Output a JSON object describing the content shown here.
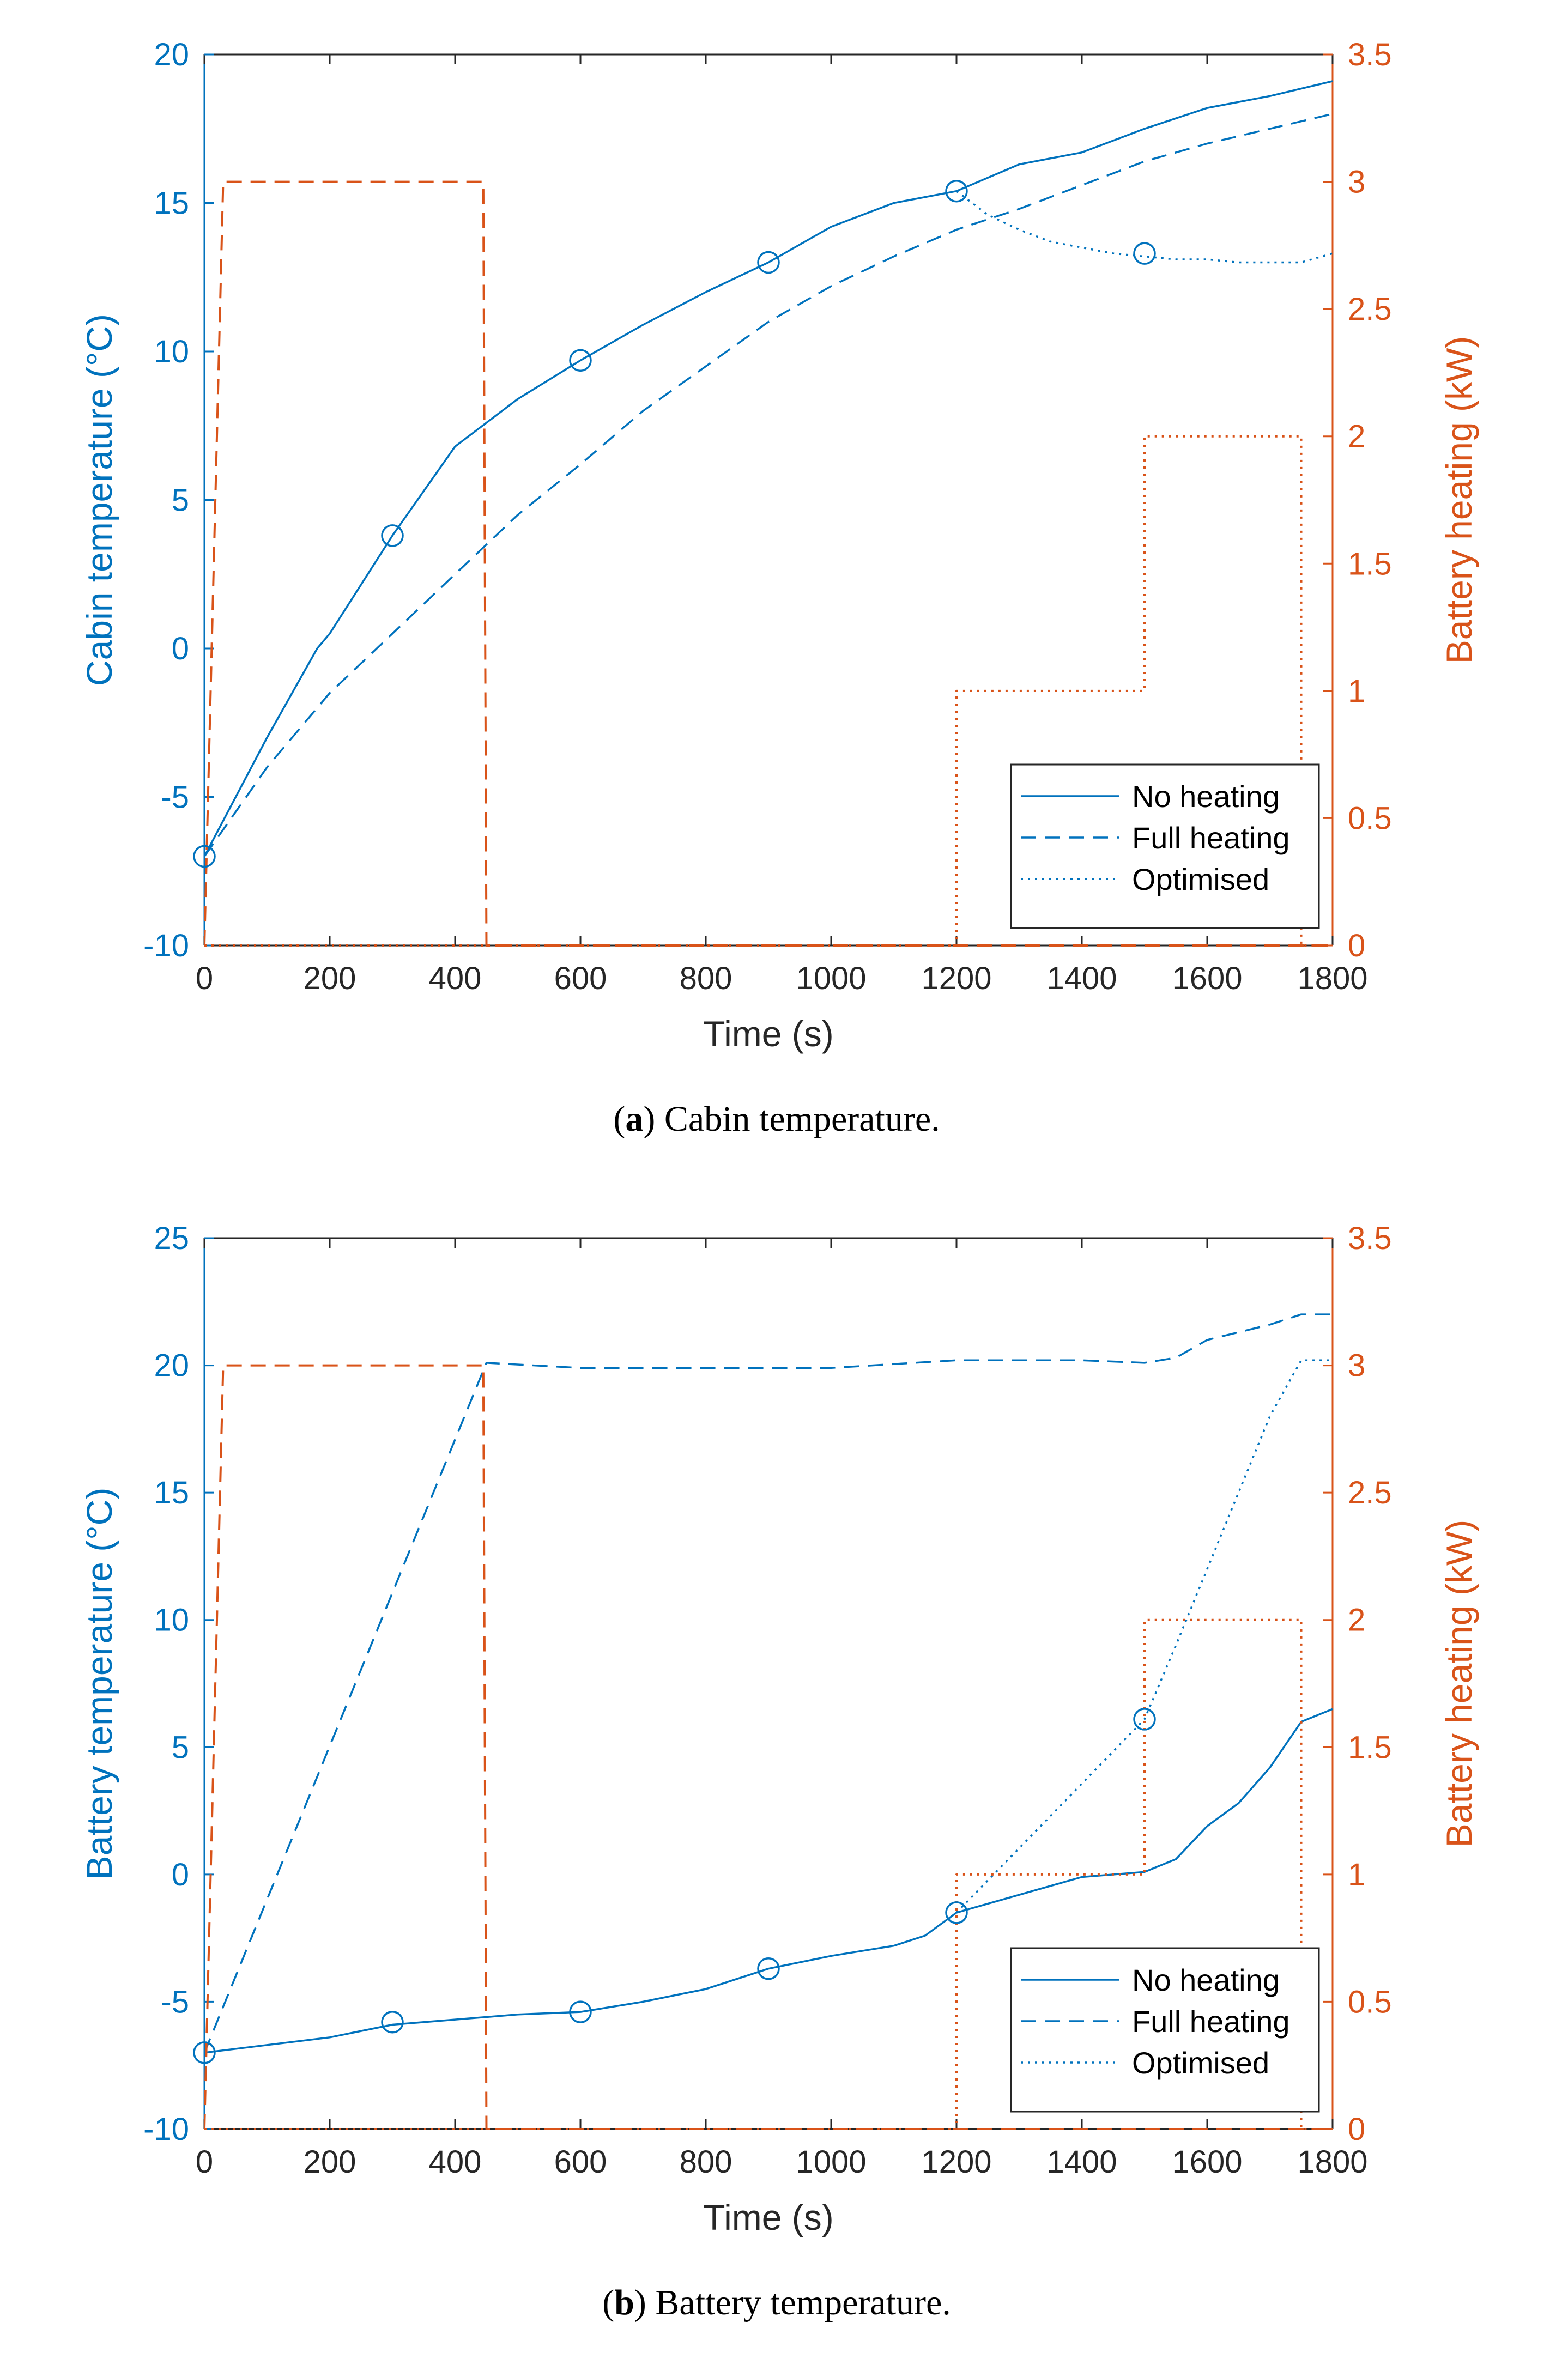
{
  "colors": {
    "left_axis": "#0072BD",
    "right_axis": "#D95319",
    "series_blue": "#0072BD",
    "heat_orange": "#D95319"
  },
  "chart_data": [
    {
      "type": "line",
      "caption_letter": "a",
      "caption_open": "(",
      "caption_close": ")",
      "caption_text": " Cabin temperature.",
      "xlabel": "Time (s)",
      "ylabel_left": "Cabin temperature (°C)",
      "ylabel_right": "Battery heating (kW)",
      "xlim": [
        0,
        1800
      ],
      "ylim_left": [
        -10,
        20
      ],
      "ylim_right": [
        0,
        3.5
      ],
      "xticks": [
        0,
        200,
        400,
        600,
        800,
        1000,
        1200,
        1400,
        1600,
        1800
      ],
      "yticks_left": [
        -10,
        -5,
        0,
        5,
        10,
        15,
        20
      ],
      "yticks_right": [
        0,
        0.5,
        1,
        1.5,
        2,
        2.5,
        3,
        3.5
      ],
      "ytick_labels_right": [
        "0",
        "0.5",
        "1",
        "1.5",
        "2",
        "2.5",
        "3",
        "3.5"
      ],
      "legend": {
        "placement": "bottom-right",
        "entries": [
          "No heating",
          "Full heating",
          "Optimised"
        ]
      },
      "series": [
        {
          "name": "No heating",
          "axis": "left",
          "style": "solid",
          "x": [
            0,
            100,
            180,
            200,
            300,
            400,
            500,
            600,
            700,
            800,
            900,
            1000,
            1100,
            1200,
            1300,
            1400,
            1500,
            1600,
            1700,
            1800
          ],
          "y": [
            -7,
            -3,
            0,
            0.5,
            3.8,
            6.8,
            8.4,
            9.7,
            10.9,
            12,
            13,
            14.2,
            15,
            15.4,
            16.3,
            16.7,
            17.5,
            18.2,
            18.6,
            19.1
          ]
        },
        {
          "name": "Full heating",
          "axis": "left",
          "style": "dashed",
          "x": [
            0,
            100,
            200,
            300,
            400,
            500,
            600,
            700,
            800,
            900,
            1000,
            1100,
            1200,
            1300,
            1400,
            1500,
            1600,
            1700,
            1800
          ],
          "y": [
            -7,
            -4,
            -1.5,
            0.5,
            2.5,
            4.5,
            6.2,
            8,
            9.5,
            11,
            12.2,
            13.2,
            14.1,
            14.8,
            15.6,
            16.4,
            17,
            17.5,
            18
          ]
        },
        {
          "name": "Optimised",
          "axis": "left",
          "style": "dotted",
          "x": [
            1200,
            1250,
            1300,
            1350,
            1400,
            1450,
            1500,
            1550,
            1600,
            1650,
            1700,
            1750,
            1800
          ],
          "y": [
            15.4,
            14.6,
            14.1,
            13.7,
            13.5,
            13.3,
            13.2,
            13.1,
            13.1,
            13.0,
            13.0,
            13.0,
            13.3
          ]
        },
        {
          "name": "Full heating power",
          "axis": "right",
          "style": "dashed-orange",
          "x": [
            0,
            30,
            445,
            450,
            1800
          ],
          "y": [
            0,
            3,
            3,
            0,
            0
          ]
        },
        {
          "name": "Optimised power",
          "axis": "right",
          "style": "dotted-orange",
          "x": [
            0,
            1200,
            1200,
            1500,
            1500,
            1750,
            1750,
            1800
          ],
          "y": [
            0,
            0,
            1,
            1,
            2,
            2,
            0,
            0
          ]
        }
      ],
      "markers": {
        "axis": "left",
        "x": [
          0,
          300,
          600,
          900,
          1200,
          1500
        ],
        "y": [
          -7,
          3.8,
          9.7,
          13,
          15.4,
          13.3
        ]
      }
    },
    {
      "type": "line",
      "caption_letter": "b",
      "caption_open": "(",
      "caption_close": ")",
      "caption_text": " Battery temperature.",
      "xlabel": "Time (s)",
      "ylabel_left": "Battery temperature (°C)",
      "ylabel_right": "Battery heating (kW)",
      "xlim": [
        0,
        1800
      ],
      "ylim_left": [
        -10,
        25
      ],
      "ylim_right": [
        0,
        3.5
      ],
      "xticks": [
        0,
        200,
        400,
        600,
        800,
        1000,
        1200,
        1400,
        1600,
        1800
      ],
      "yticks_left": [
        -10,
        -5,
        0,
        5,
        10,
        15,
        20,
        25
      ],
      "yticks_right": [
        0,
        0.5,
        1,
        1.5,
        2,
        2.5,
        3,
        3.5
      ],
      "ytick_labels_right": [
        "0",
        "0.5",
        "1",
        "1.5",
        "2",
        "2.5",
        "3",
        "3.5"
      ],
      "legend": {
        "placement": "bottom-right",
        "entries": [
          "No heating",
          "Full heating",
          "Optimised"
        ]
      },
      "series": [
        {
          "name": "No heating",
          "axis": "left",
          "style": "solid",
          "x": [
            0,
            100,
            200,
            300,
            400,
            500,
            600,
            700,
            800,
            900,
            1000,
            1100,
            1150,
            1200,
            1300,
            1400,
            1500,
            1550,
            1600,
            1650,
            1700,
            1750,
            1800
          ],
          "y": [
            -7,
            -6.7,
            -6.4,
            -5.9,
            -5.7,
            -5.5,
            -5.4,
            -5,
            -4.5,
            -3.7,
            -3.2,
            -2.8,
            -2.4,
            -1.5,
            -0.8,
            -0.1,
            0.1,
            0.6,
            1.9,
            2.8,
            4.2,
            6.0,
            6.5
          ]
        },
        {
          "name": "Full heating",
          "axis": "left",
          "style": "dashed",
          "x": [
            0,
            450,
            600,
            800,
            1000,
            1200,
            1400,
            1500,
            1550,
            1600,
            1700,
            1750,
            1800
          ],
          "y": [
            -7,
            20.1,
            19.9,
            19.9,
            19.9,
            20.2,
            20.2,
            20.1,
            20.3,
            21.0,
            21.6,
            22.0,
            22.0
          ]
        },
        {
          "name": "Optimised",
          "axis": "left",
          "style": "dotted",
          "x": [
            1200,
            1500,
            1550,
            1600,
            1650,
            1700,
            1750,
            1800
          ],
          "y": [
            -1.5,
            6.1,
            9.0,
            12.0,
            15.0,
            18.0,
            20.2,
            20.2
          ]
        },
        {
          "name": "Full heating power",
          "axis": "right",
          "style": "dashed-orange",
          "x": [
            0,
            30,
            445,
            450,
            1800
          ],
          "y": [
            0,
            3,
            3,
            0,
            0
          ]
        },
        {
          "name": "Optimised power",
          "axis": "right",
          "style": "dotted-orange",
          "x": [
            0,
            1200,
            1200,
            1500,
            1500,
            1750,
            1750,
            1800
          ],
          "y": [
            0,
            0,
            1,
            1,
            2,
            2,
            0,
            0
          ]
        }
      ],
      "markers": {
        "axis": "left",
        "x": [
          0,
          300,
          600,
          900,
          1200,
          1500
        ],
        "y": [
          -7,
          -5.8,
          -5.4,
          -3.7,
          -1.5,
          6.1
        ]
      }
    }
  ]
}
